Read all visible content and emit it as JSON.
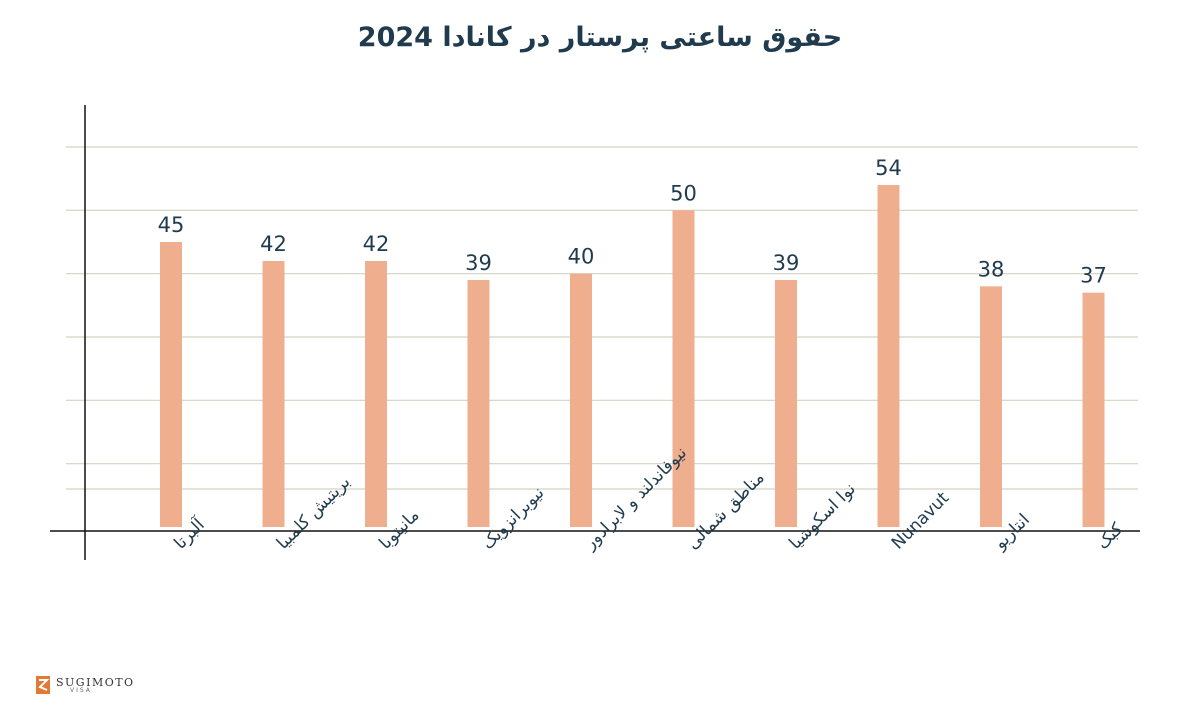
{
  "chart_data": {
    "type": "bar",
    "title": "حقوق ساعتی پرستار در کانادا 2024",
    "categories": [
      "آلبرتا",
      "بریتیش کلمبیا",
      "مانیتوبا",
      "نیوبرانزویک",
      "نیوفاندلند و لابرادور",
      "مناطق شمالی",
      "نوا اسکوشیا",
      "Nunavut",
      "انتاریو",
      "کبک"
    ],
    "values": [
      45,
      42,
      42,
      39,
      40,
      50,
      39,
      54,
      38,
      37
    ],
    "xlabel": "",
    "ylabel": "",
    "ylim": [
      0,
      60
    ],
    "grid": true,
    "legend": "none",
    "colors": {
      "bar": "#efaf8f",
      "label": "#1f3b4d",
      "grid": "#d2d2c0",
      "axis": "#111111",
      "title": "#1f3b4d"
    }
  },
  "logo": {
    "name": "SUGIMOTO",
    "sub": "VISA",
    "color": "#e27936"
  }
}
